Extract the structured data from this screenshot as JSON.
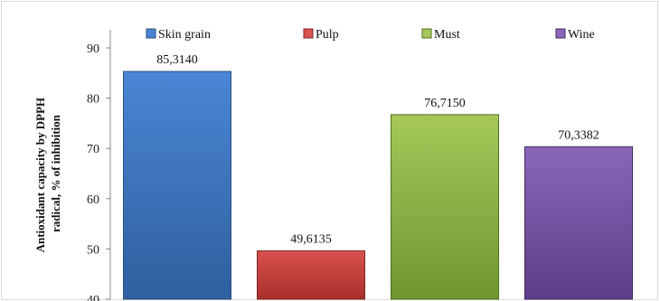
{
  "chart_data": {
    "type": "bar",
    "categories": [
      "Skin grain",
      "Pulp",
      "Must",
      "Wine"
    ],
    "values": [
      85.314,
      49.6135,
      76.715,
      70.3382
    ],
    "data_labels": [
      "85,3140",
      "49,6135",
      "76,7150",
      "70,3382"
    ],
    "ylabel_lines": [
      "Antioxidant capacity by DPPH",
      "radical, % of inhibition"
    ],
    "ylim": [
      40,
      90
    ],
    "yticks": [
      40,
      50,
      60,
      70,
      80,
      90
    ],
    "ytick_labels": [
      "40",
      "50",
      "60",
      "70",
      "80",
      "90"
    ],
    "legend": [
      "Skin grain",
      "Pulp",
      "Must",
      "Wine"
    ],
    "legend_position": "top",
    "grid": false,
    "colors": [
      {
        "top": "#4a86d4",
        "bottom": "#2f5f9e",
        "edge": "#2a4f80"
      },
      {
        "top": "#d9534f",
        "bottom": "#a82e2a",
        "edge": "#7a2420"
      },
      {
        "top": "#a6c85a",
        "bottom": "#6f9630",
        "edge": "#4f6e20"
      },
      {
        "top": "#8b66b8",
        "bottom": "#5c3d88",
        "edge": "#3f2a60"
      }
    ]
  }
}
